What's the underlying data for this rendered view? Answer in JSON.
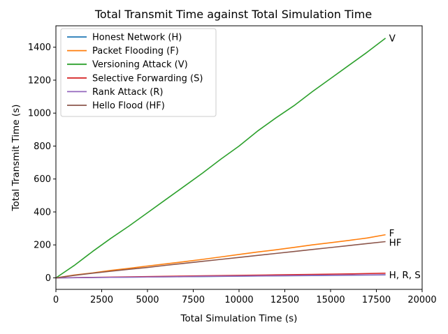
{
  "chart_data": {
    "type": "line",
    "title": "Total Transmit Time against Total Simulation Time",
    "xlabel": "Total Simulation Time (s)",
    "ylabel": "Total Transmit Time (s)",
    "xlim": [
      0,
      20000
    ],
    "ylim": [
      -70,
      1530
    ],
    "xticks": [
      0,
      2500,
      5000,
      7500,
      10000,
      12500,
      15000,
      17500,
      20000
    ],
    "yticks": [
      0,
      200,
      400,
      600,
      800,
      1000,
      1200,
      1400
    ],
    "grid": false,
    "legend_position": "upper-left",
    "series": [
      {
        "name": "Honest Network (H)",
        "color": "#1f77b4",
        "x": [
          0,
          2000,
          4000,
          6000,
          8000,
          10000,
          12000,
          14000,
          16000,
          18000
        ],
        "y": [
          0,
          2,
          4,
          6,
          8,
          10,
          12,
          14,
          16,
          18
        ]
      },
      {
        "name": "Packet Flooding (F)",
        "color": "#ff7f0e",
        "x": [
          0,
          1000,
          2000,
          3000,
          4000,
          5000,
          6000,
          7000,
          8000,
          9000,
          10000,
          11000,
          12000,
          13000,
          14000,
          15000,
          16000,
          17000,
          18000
        ],
        "y": [
          0,
          17,
          30,
          45,
          58,
          72,
          85,
          98,
          112,
          127,
          142,
          157,
          170,
          185,
          200,
          213,
          227,
          242,
          262
        ]
      },
      {
        "name": "Versioning Attack (V)",
        "color": "#2ca02c",
        "x": [
          0,
          1000,
          2000,
          3000,
          4000,
          5000,
          6000,
          7000,
          8000,
          9000,
          10000,
          11000,
          12000,
          13000,
          14000,
          15000,
          16000,
          17000,
          18000
        ],
        "y": [
          0,
          75,
          160,
          240,
          315,
          395,
          475,
          555,
          635,
          720,
          800,
          890,
          970,
          1045,
          1130,
          1210,
          1290,
          1370,
          1455
        ]
      },
      {
        "name": "Selective Forwarding (S)",
        "color": "#d62728",
        "x": [
          0,
          2000,
          4000,
          6000,
          8000,
          10000,
          12000,
          14000,
          16000,
          18000
        ],
        "y": [
          0,
          3,
          6,
          9,
          12,
          15,
          18,
          21,
          24,
          28
        ]
      },
      {
        "name": "Rank Attack (R)",
        "color": "#9467bd",
        "x": [
          0,
          2000,
          4000,
          6000,
          8000,
          10000,
          12000,
          14000,
          16000,
          18000
        ],
        "y": [
          0,
          2,
          4,
          6,
          9,
          11,
          13,
          15,
          17,
          19
        ]
      },
      {
        "name": "Hello Flood (HF)",
        "color": "#8c564b",
        "x": [
          0,
          1000,
          2000,
          3000,
          4000,
          5000,
          6000,
          7000,
          8000,
          9000,
          10000,
          11000,
          12000,
          13000,
          14000,
          15000,
          16000,
          17000,
          18000
        ],
        "y": [
          0,
          15,
          28,
          40,
          52,
          63,
          76,
          88,
          100,
          112,
          124,
          136,
          148,
          160,
          172,
          184,
          196,
          208,
          220
        ]
      }
    ],
    "annotations": [
      {
        "text": "V",
        "x": 18000,
        "y": 1455
      },
      {
        "text": "F",
        "x": 18000,
        "y": 272
      },
      {
        "text": "HF",
        "x": 18000,
        "y": 215
      },
      {
        "text": "H, R, S",
        "x": 18000,
        "y": 18
      }
    ]
  }
}
